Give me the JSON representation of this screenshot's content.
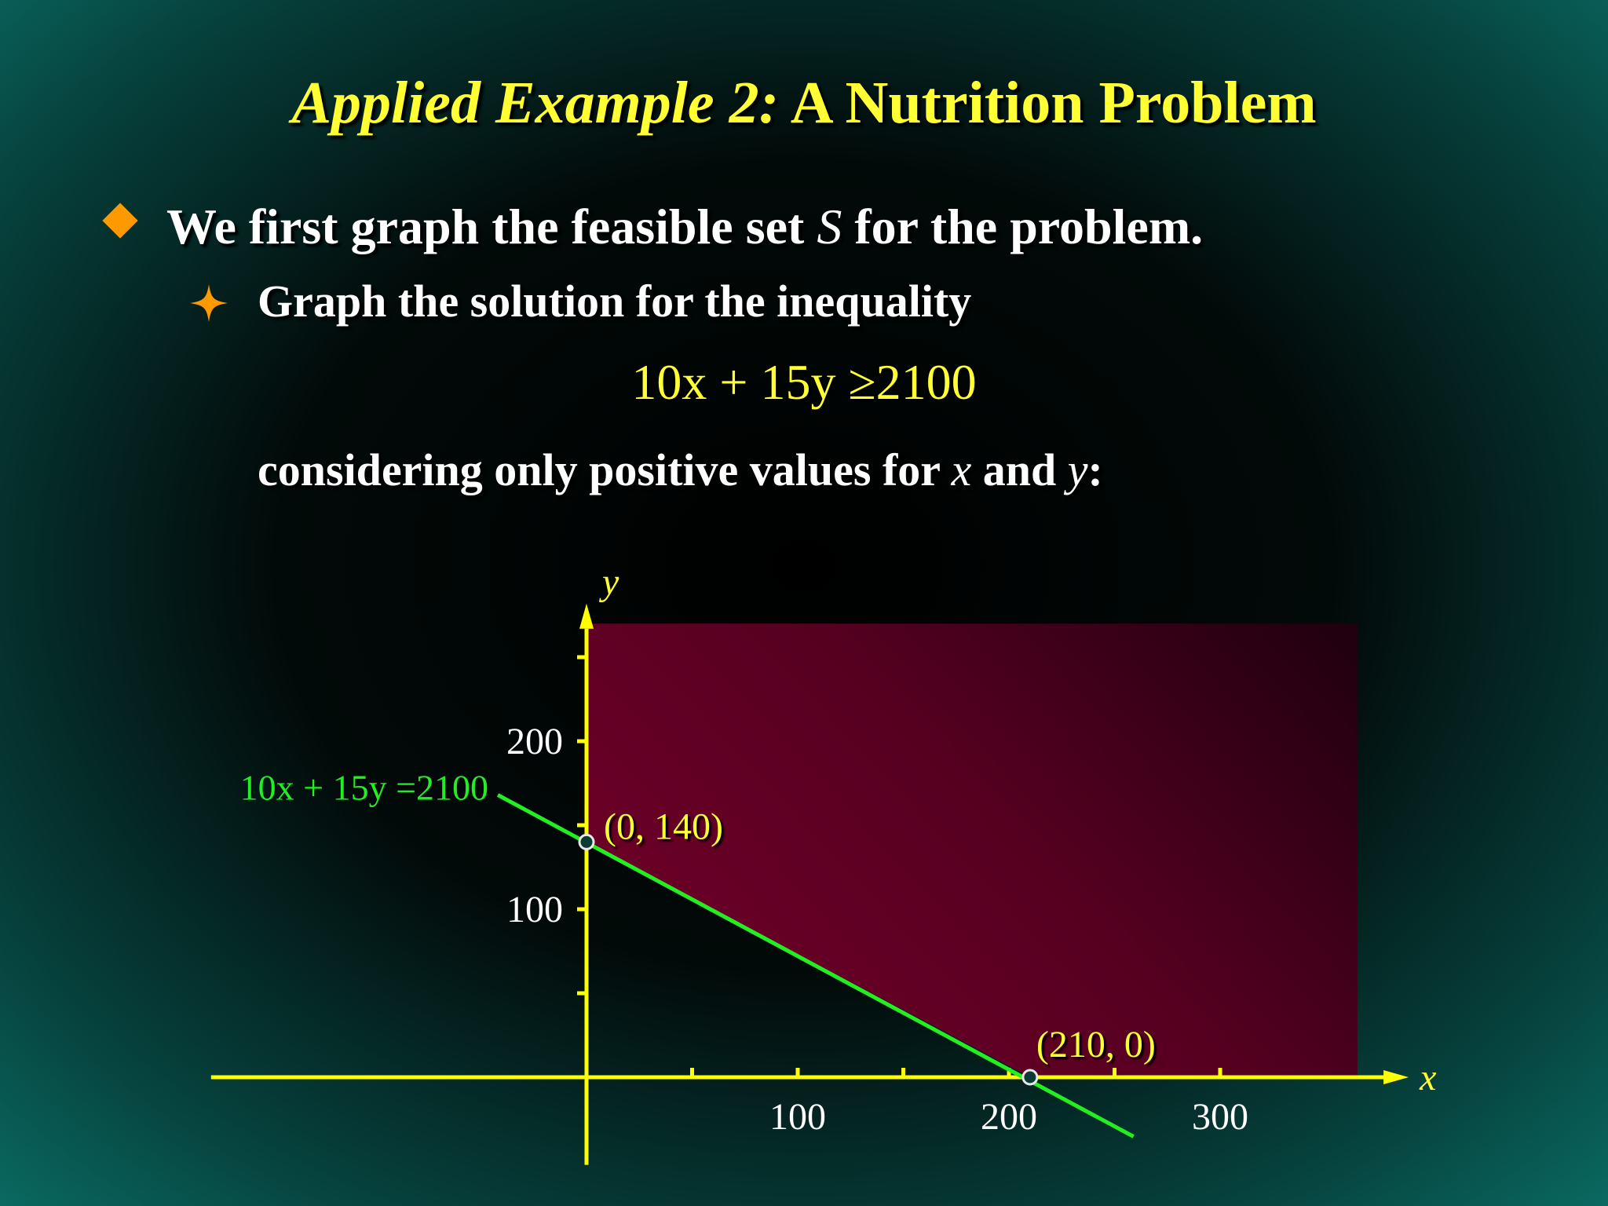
{
  "slide": {
    "title_italic": "Applied Example 2:",
    "title_rest": "A Nutrition Problem",
    "bullet1": {
      "pre": "We first graph the feasible set ",
      "var": "S",
      "post": " for the problem."
    },
    "bullet2": "Graph the solution for the inequality",
    "inequality": "10x + 15y ≥2100",
    "line3": {
      "pre": "considering only positive values for ",
      "x": "x",
      "mid": " and ",
      "y": "y",
      "post": ":"
    }
  },
  "colors": {
    "title": "#ffff33",
    "axis": "#ffff00",
    "constraint_line": "#22ee22",
    "feasible_region": "#6b0026",
    "bullet": "#ff9900",
    "body_text": "#ffffff"
  },
  "chart_data": {
    "type": "line",
    "xlabel": "x",
    "ylabel": "y",
    "xlim": [
      -180,
      390
    ],
    "ylim": [
      -40,
      280
    ],
    "x_ticks": [
      50,
      100,
      150,
      200,
      250,
      300
    ],
    "x_tick_labels": [
      {
        "value": 100,
        "label": "100"
      },
      {
        "value": 200,
        "label": "200"
      },
      {
        "value": 300,
        "label": "300"
      }
    ],
    "y_ticks": [
      50,
      100,
      150,
      200,
      250
    ],
    "y_tick_labels": [
      {
        "value": 100,
        "label": "100"
      },
      {
        "value": 200,
        "label": "200"
      }
    ],
    "line": {
      "label": "10x + 15y =2100",
      "from": [
        -42,
        168
      ],
      "to": [
        259,
        -35.3
      ]
    },
    "feasible_region": {
      "x_max": 365,
      "y_max": 270
    },
    "points": [
      {
        "x": 0,
        "y": 140,
        "label": "(0, 140)"
      },
      {
        "x": 210,
        "y": 0,
        "label": "(210, 0)"
      }
    ],
    "grid": false,
    "legend": "none"
  }
}
